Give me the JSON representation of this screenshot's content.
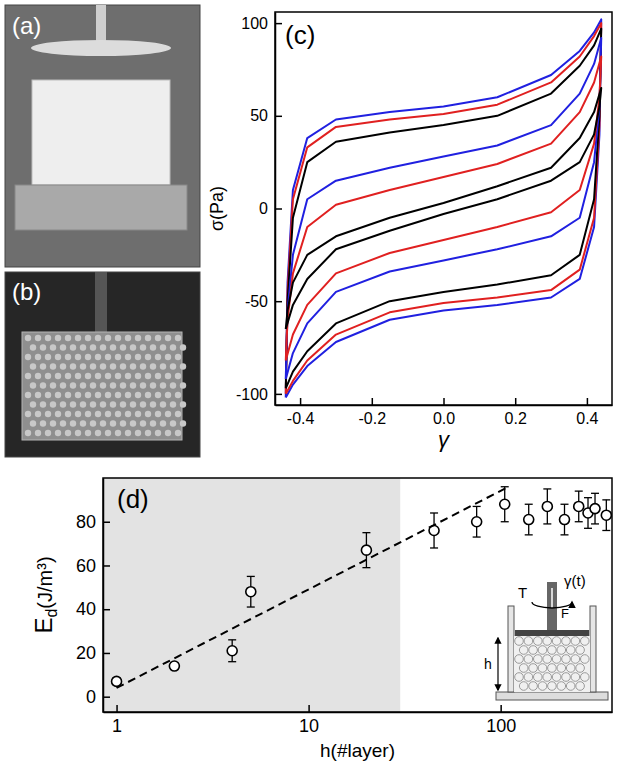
{
  "photos": [
    {
      "label": "(a)"
    },
    {
      "label": "(b)"
    }
  ],
  "chart_data": [
    {
      "type": "line",
      "panel_label": "(c)",
      "x_label": "γ",
      "y_label": "σ(Pa)",
      "xlim": [
        -0.47,
        0.47
      ],
      "ylim": [
        -106,
        106
      ],
      "xticks": [
        -0.4,
        -0.2,
        {
          "value": 0,
          "label": "0.0"
        },
        0.2,
        0.4
      ],
      "yticks": [
        -100,
        -50,
        0,
        50,
        100
      ],
      "x": [
        -0.44,
        -0.435,
        -0.42,
        -0.38,
        -0.3,
        -0.15,
        0,
        0.15,
        0.3,
        0.38,
        0.42,
        0.44,
        0.435,
        0.42,
        0.38,
        0.3,
        0.15,
        0,
        -0.15,
        -0.3,
        -0.38,
        -0.42,
        -0.44
      ],
      "series": [
        {
          "color": "#2020e0",
          "values": [
            -102,
            -40,
            10,
            38,
            48,
            52,
            55,
            60,
            72,
            85,
            95,
            102,
            40,
            -10,
            -38,
            -48,
            -52,
            -55,
            -60,
            -72,
            -85,
            -95,
            -102
          ]
        },
        {
          "color": "#e02020",
          "values": [
            -100,
            -45,
            5,
            33,
            44,
            48,
            51,
            56,
            68,
            82,
            93,
            100,
            45,
            -5,
            -33,
            -44,
            -48,
            -51,
            -56,
            -68,
            -82,
            -93,
            -100
          ]
        },
        {
          "color": "#000000",
          "values": [
            -97,
            -50,
            -5,
            25,
            36,
            41,
            45,
            50,
            62,
            77,
            88,
            97,
            50,
            5,
            -25,
            -36,
            -41,
            -45,
            -50,
            -62,
            -77,
            -88,
            -97
          ]
        },
        {
          "color": "#2020e0",
          "values": [
            -92,
            -55,
            -25,
            5,
            15,
            22,
            28,
            34,
            45,
            62,
            78,
            92,
            55,
            25,
            -5,
            -15,
            -22,
            -28,
            -34,
            -45,
            -62,
            -78,
            -92
          ]
        },
        {
          "color": "#e02020",
          "values": [
            -82,
            -60,
            -35,
            -10,
            2,
            10,
            17,
            24,
            35,
            52,
            68,
            82,
            60,
            35,
            10,
            -2,
            -10,
            -17,
            -24,
            -35,
            -52,
            -68,
            -82
          ]
        },
        {
          "color": "#000000",
          "values": [
            -65,
            -55,
            -40,
            -25,
            -15,
            -5,
            3,
            12,
            22,
            38,
            52,
            65,
            55,
            40,
            25,
            15,
            5,
            -3,
            -12,
            -22,
            -38,
            -52,
            -65
          ]
        }
      ]
    },
    {
      "type": "scatter",
      "panel_label": "(d)",
      "x_label": "h(#layer)",
      "y_label": "E",
      "y_label_sub": "d",
      "y_label_unit": "(J/m³)",
      "log": "x",
      "xlim": [
        0.85,
        380
      ],
      "ylim": [
        -7,
        100
      ],
      "xticks": [
        1,
        10,
        100
      ],
      "yticks": [
        0,
        20,
        40,
        60,
        80
      ],
      "shaded_range": [
        0.85,
        30
      ],
      "series": [
        {
          "type": "scatter",
          "marker": "circle",
          "color": "#000000",
          "x": [
            1,
            2,
            4,
            5,
            20,
            45,
            75,
            105,
            140,
            175,
            215,
            255,
            285,
            310,
            355
          ],
          "values": [
            7,
            14,
            21,
            48,
            67,
            76,
            80,
            88,
            81,
            87,
            81,
            87,
            84,
            86,
            83
          ],
          "errors": [
            1.5,
            1.5,
            5,
            7,
            8,
            8,
            7,
            8,
            7,
            8,
            7,
            7,
            7,
            7,
            7
          ]
        },
        {
          "type": "line",
          "line_style": "dashed",
          "color": "#000000",
          "x": [
            1,
            110
          ],
          "values": [
            4,
            96
          ]
        }
      ],
      "inset_labels": [
        "T",
        "F",
        "γ(t)",
        "h"
      ]
    }
  ]
}
